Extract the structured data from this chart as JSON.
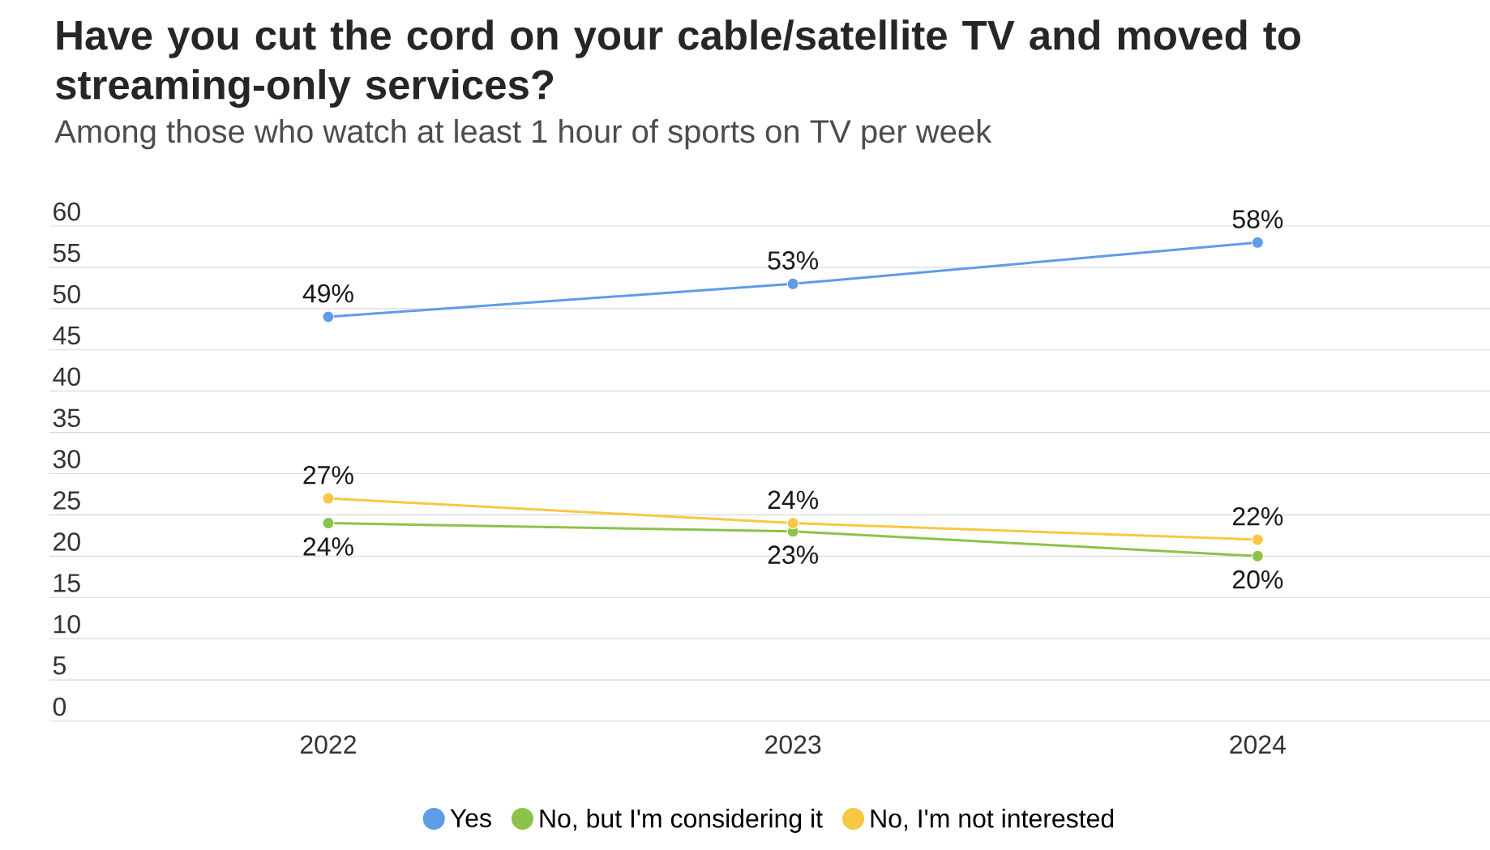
{
  "chart_data": {
    "type": "line",
    "title": "Have you cut the cord on your cable/satellite TV and moved to streaming-only services?",
    "subtitle": "Among those who watch at least 1 hour of sports on TV per week",
    "categories": [
      "2022",
      "2023",
      "2024"
    ],
    "series": [
      {
        "name": "Yes",
        "color": "#5e9ce8",
        "values": [
          49,
          53,
          58
        ],
        "value_labels": [
          "49%",
          "53%",
          "58%"
        ]
      },
      {
        "name": "No, but I'm considering it",
        "color": "#8bc34a",
        "values": [
          24,
          23,
          20
        ],
        "value_labels": [
          "24%",
          "23%",
          "20%"
        ]
      },
      {
        "name": "No, I'm not interested",
        "color": "#f7c843",
        "values": [
          27,
          24,
          22
        ],
        "value_labels": [
          "27%",
          "24%",
          "22%"
        ]
      }
    ],
    "ylim": [
      0,
      60
    ],
    "yticks": [
      0,
      5,
      10,
      15,
      20,
      25,
      30,
      35,
      40,
      45,
      50,
      55,
      60
    ],
    "grid": "y",
    "legend": "bottom",
    "marker": "circle",
    "line_style": "solid"
  }
}
